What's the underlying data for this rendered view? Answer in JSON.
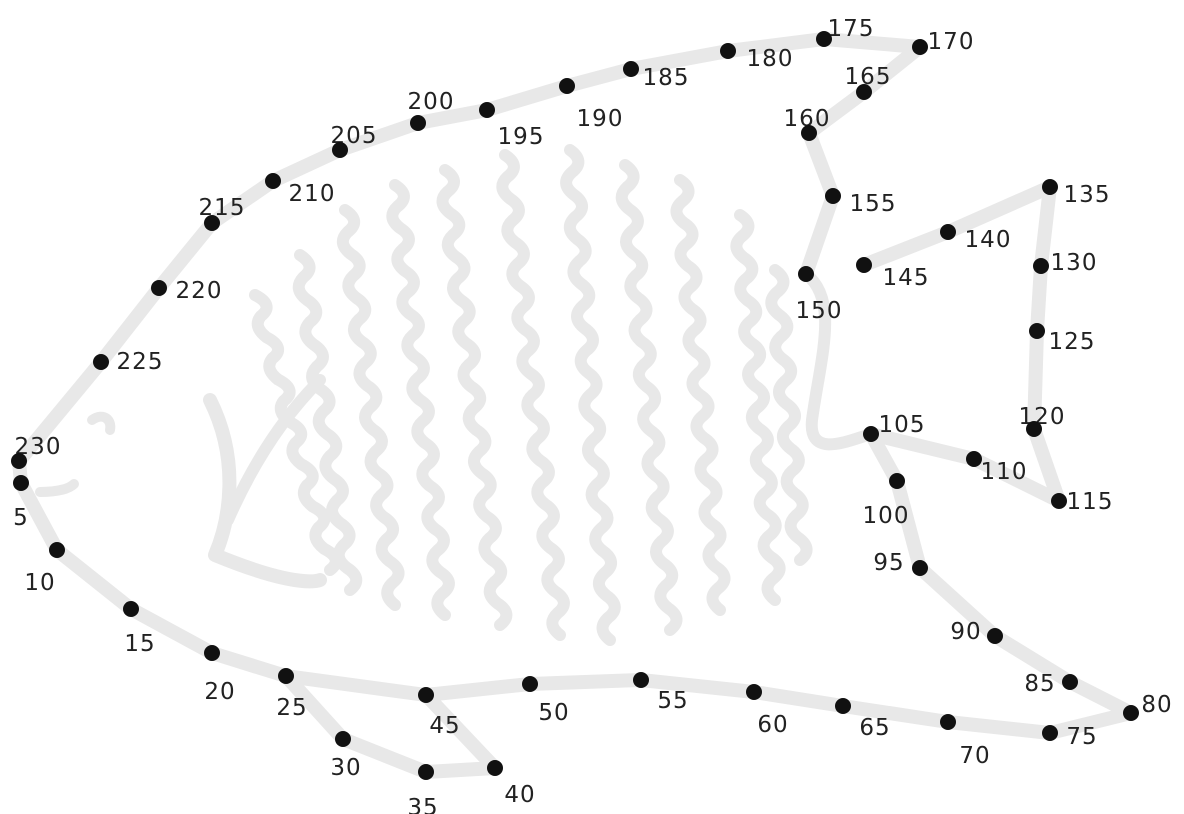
{
  "colors": {
    "background": "#ffffff",
    "guide_line": "#e8e8e8",
    "dot": "#111111",
    "label": "#222222"
  },
  "dots": [
    {
      "label": "5"
    },
    {
      "label": "10"
    },
    {
      "label": "15"
    },
    {
      "label": "20"
    },
    {
      "label": "25"
    },
    {
      "label": "30"
    },
    {
      "label": "35"
    },
    {
      "label": "40"
    },
    {
      "label": "45"
    },
    {
      "label": "50"
    },
    {
      "label": "55"
    },
    {
      "label": "60"
    },
    {
      "label": "65"
    },
    {
      "label": "70"
    },
    {
      "label": "75"
    },
    {
      "label": "80"
    },
    {
      "label": "85"
    },
    {
      "label": "90"
    },
    {
      "label": "95"
    },
    {
      "label": "100"
    },
    {
      "label": "105"
    },
    {
      "label": "110"
    },
    {
      "label": "115"
    },
    {
      "label": "120"
    },
    {
      "label": "125"
    },
    {
      "label": "130"
    },
    {
      "label": "135"
    },
    {
      "label": "140"
    },
    {
      "label": "145"
    },
    {
      "label": "150"
    },
    {
      "label": "155"
    },
    {
      "label": "160"
    },
    {
      "label": "165"
    },
    {
      "label": "170"
    },
    {
      "label": "175"
    },
    {
      "label": "180"
    },
    {
      "label": "185"
    },
    {
      "label": "190"
    },
    {
      "label": "195"
    },
    {
      "label": "200"
    },
    {
      "label": "205"
    },
    {
      "label": "210"
    },
    {
      "label": "215"
    },
    {
      "label": "220"
    },
    {
      "label": "225"
    },
    {
      "label": "230"
    }
  ]
}
